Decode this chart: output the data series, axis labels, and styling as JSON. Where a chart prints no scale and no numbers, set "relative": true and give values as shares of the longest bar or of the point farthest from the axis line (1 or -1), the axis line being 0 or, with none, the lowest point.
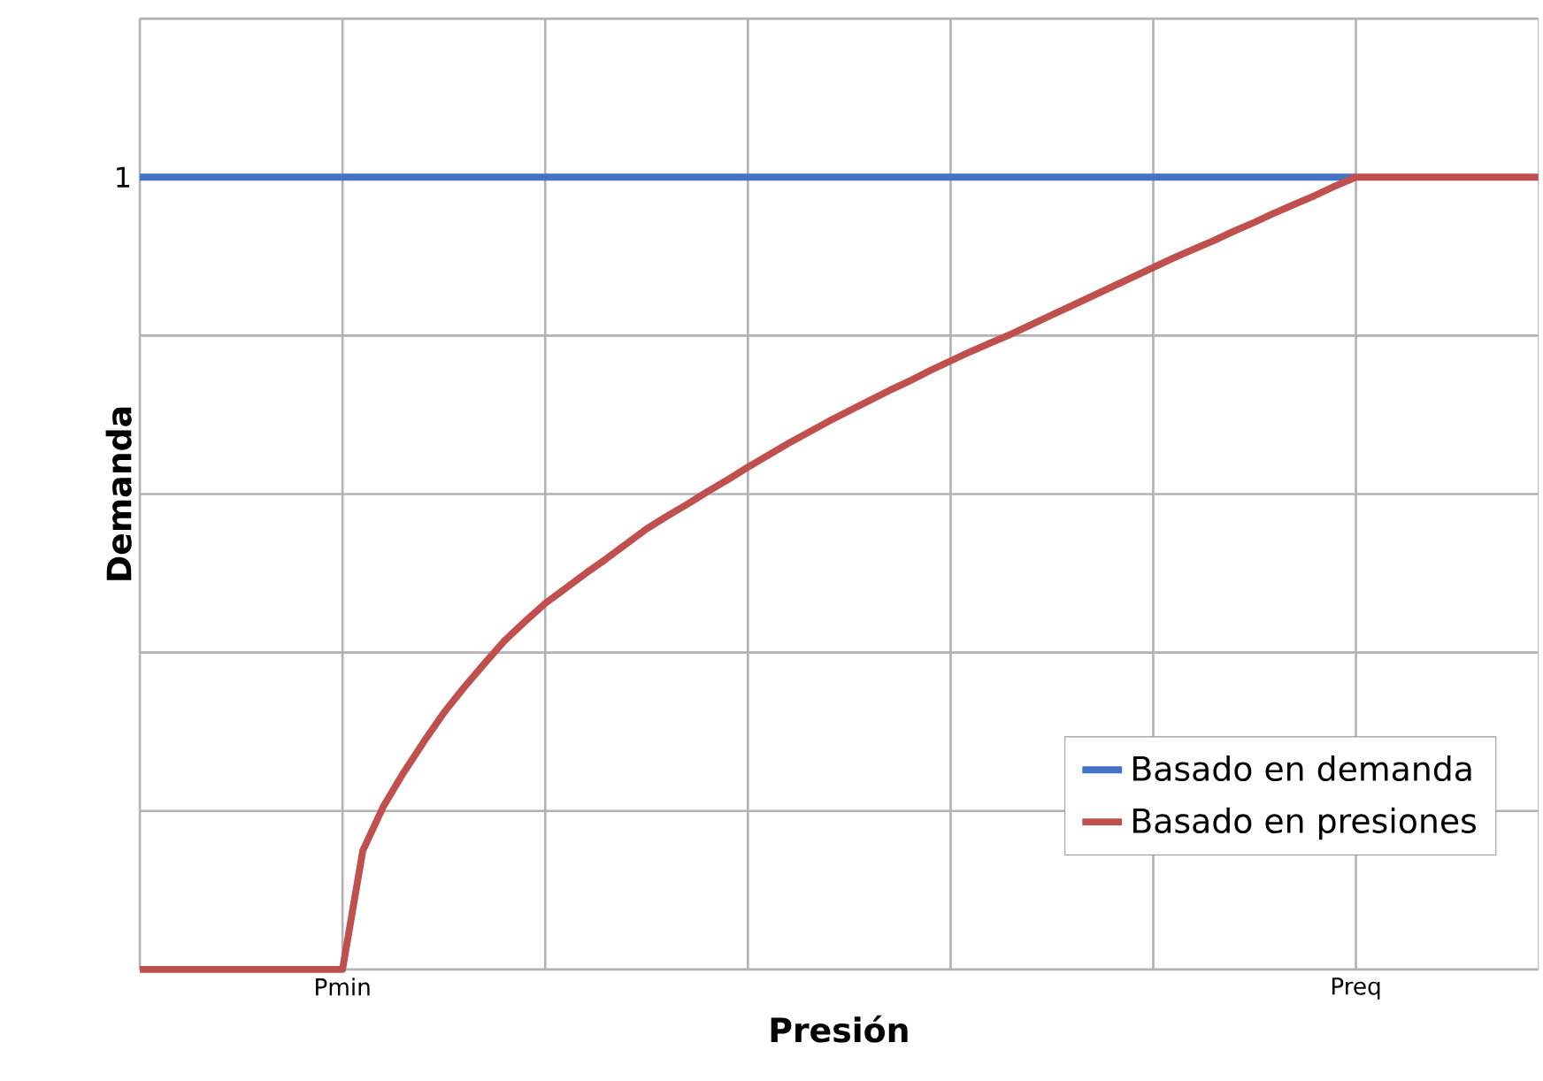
{
  "chart_data": {
    "type": "line",
    "xlabel": "Presión",
    "ylabel": "Demanda",
    "relative": true,
    "annotations": [
      "1"
    ],
    "categories": [
      null,
      null,
      null,
      null,
      null,
      null,
      null,
      null,
      null,
      null,
      "Pmin",
      null,
      null,
      null,
      null,
      null,
      null,
      null,
      null,
      null,
      null,
      null,
      null,
      null,
      null,
      null,
      null,
      null,
      null,
      null,
      null,
      null,
      null,
      null,
      null,
      null,
      null,
      null,
      null,
      null,
      null,
      null,
      null,
      null,
      null,
      null,
      null,
      null,
      null,
      null,
      null,
      null,
      null,
      null,
      null,
      null,
      null,
      null,
      null,
      null,
      "Preq",
      null,
      null,
      null,
      null,
      null,
      null,
      null,
      null,
      null
    ],
    "grid": true,
    "legend": "bottom right",
    "marker": "none",
    "line_style": "solid",
    "series": [
      {
        "name": "Basado en demanda",
        "color": "#4472c4",
        "values": [
          1,
          1,
          1,
          1,
          1,
          1,
          1,
          1,
          1,
          1,
          1,
          1,
          1,
          1,
          1,
          1,
          1,
          1,
          1,
          1,
          1,
          1,
          1,
          1,
          1,
          1,
          1,
          1,
          1,
          1,
          1,
          1,
          1,
          1,
          1,
          1,
          1,
          1,
          1,
          1,
          1,
          1,
          1,
          1,
          1,
          1,
          1,
          1,
          1,
          1,
          1,
          1,
          1,
          1,
          1,
          1,
          1,
          1,
          1,
          1,
          1,
          null,
          null,
          null,
          null,
          null,
          null,
          null,
          null,
          null
        ]
      },
      {
        "name": "Basado en presiones",
        "color": "#c0504d",
        "values": [
          0,
          0,
          0,
          0,
          0,
          0,
          0,
          0,
          0,
          0,
          0,
          0.15,
          0.205,
          0.248,
          0.287,
          0.324,
          0.356,
          0.386,
          0.415,
          0.439,
          0.462,
          0.481,
          0.5,
          0.518,
          0.537,
          0.556,
          0.572,
          0.587,
          0.603,
          0.618,
          0.634,
          0.649,
          0.664,
          0.678,
          0.692,
          0.705,
          0.718,
          0.731,
          0.743,
          0.756,
          0.768,
          0.78,
          0.791,
          0.802,
          0.814,
          0.826,
          0.838,
          0.85,
          0.862,
          0.874,
          0.886,
          0.898,
          0.909,
          0.92,
          0.932,
          0.943,
          0.955,
          0.966,
          0.977,
          0.989,
          1,
          1,
          1,
          1,
          1,
          1,
          1,
          1,
          1,
          1
        ]
      }
    ]
  }
}
